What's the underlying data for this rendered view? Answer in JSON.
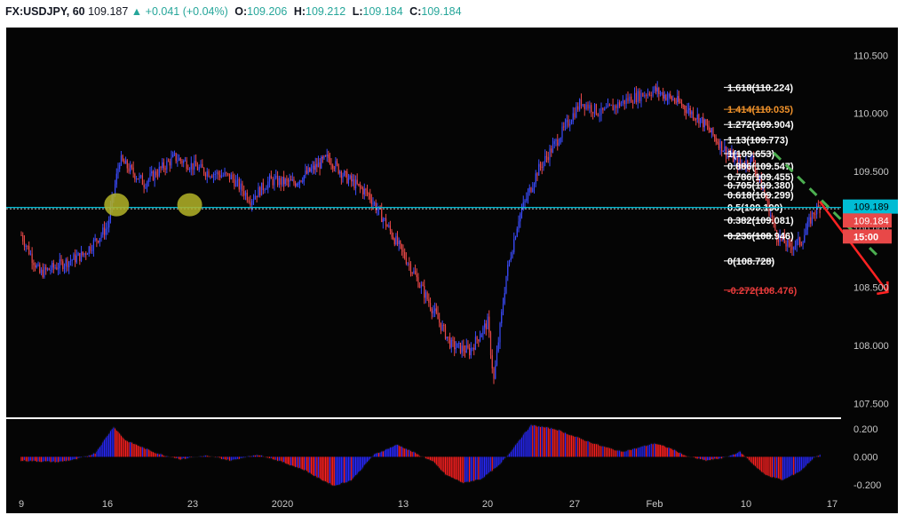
{
  "header": {
    "symbol": "FX:USDJPY, 60",
    "last": "109.187",
    "change_arrow": "▲",
    "change": "+0.041 (+0.04%)",
    "o_label": "O:",
    "o_value": "109.206",
    "h_label": "H:",
    "h_value": "109.212",
    "l_label": "L:",
    "l_value": "109.184",
    "c_label": "C:",
    "c_value": "109.184"
  },
  "colors": {
    "background": "#050505",
    "up_candle": "#3b4cff",
    "down_candle": "#e84848",
    "fib_line": "#ffffff",
    "fib_highlight": "#f0922b",
    "fib_negative": "#e83b3b",
    "price_line": "#00bcd4",
    "trend_arrow": "#ff2222",
    "trendline": "#4caf50",
    "marker": "#b4b428",
    "osc_up": "#2828ff",
    "osc_down": "#ff2020"
  },
  "chart_data": [
    {
      "type": "candlestick",
      "title": "FX:USDJPY, 60",
      "x_ticks": [
        "9",
        "16",
        "23",
        "2020",
        "13",
        "20",
        "27",
        "Feb",
        "10",
        "17"
      ],
      "y_ticks": [
        "110.500",
        "110.000",
        "109.500",
        "109.000",
        "108.500",
        "108.000",
        "107.500"
      ],
      "ylim": [
        107.38,
        110.74
      ],
      "price_series": [
        [
          0,
          108.95
        ],
        [
          3,
          108.62
        ],
        [
          10,
          108.78
        ],
        [
          14,
          109.02
        ],
        [
          16,
          109.6
        ],
        [
          20,
          109.4
        ],
        [
          25,
          109.62
        ],
        [
          30,
          109.5
        ],
        [
          34,
          109.45
        ],
        [
          37,
          109.26
        ],
        [
          40,
          109.42
        ],
        [
          44,
          109.4
        ],
        [
          50,
          109.62
        ],
        [
          53,
          109.45
        ],
        [
          57,
          109.3
        ],
        [
          60,
          109.05
        ],
        [
          64,
          108.7
        ],
        [
          68,
          108.3
        ],
        [
          71,
          108.0
        ],
        [
          74,
          107.95
        ],
        [
          77,
          108.2
        ],
        [
          78,
          107.7
        ],
        [
          80,
          108.6
        ],
        [
          82,
          109.1
        ],
        [
          85,
          109.5
        ],
        [
          88,
          109.75
        ],
        [
          92,
          110.1
        ],
        [
          95,
          110.0
        ],
        [
          99,
          110.12
        ],
        [
          103,
          110.2
        ],
        [
          107,
          110.1
        ],
        [
          111,
          109.95
        ],
        [
          115,
          109.7
        ],
        [
          118,
          109.55
        ],
        [
          120,
          109.6
        ],
        [
          122,
          109.3
        ],
        [
          124,
          108.95
        ],
        [
          126,
          108.85
        ],
        [
          128,
          108.9
        ],
        [
          130,
          109.15
        ],
        [
          131,
          109.19
        ]
      ],
      "fibonacci": [
        {
          "label": "1.618(110.224)",
          "level": 110.224
        },
        {
          "label": "1.414(110.035)",
          "level": 110.035,
          "color": "#f0922b"
        },
        {
          "label": "1.272(109.904)",
          "level": 109.904
        },
        {
          "label": "1.13(109.773)",
          "level": 109.773
        },
        {
          "label": "1(109.653)",
          "level": 109.653
        },
        {
          "label": "0.886(109.547)",
          "level": 109.547
        },
        {
          "label": "0.786(109.455)",
          "level": 109.455
        },
        {
          "label": "0.705(109.380)",
          "level": 109.38
        },
        {
          "label": "0.618(109.299)",
          "level": 109.299
        },
        {
          "label": "0.5(109.190)",
          "level": 109.19
        },
        {
          "label": "0.382(109.081)",
          "level": 109.081
        },
        {
          "label": "0.236(108.946)",
          "level": 108.946
        },
        {
          "label": "0(108.728)",
          "level": 108.728
        },
        {
          "label": "-0.272(108.476)",
          "level": 108.476,
          "color": "#e83b3b"
        }
      ],
      "price_line": 109.189,
      "price_badges": [
        {
          "text": "109.189",
          "bg": "#00bcd4",
          "fg": "#000000"
        },
        {
          "text": "109.184",
          "bg": "#e84848",
          "fg": "#ffffff"
        },
        {
          "text": "15:00",
          "bg": "#e84848",
          "fg": "#ffffff"
        }
      ],
      "support_markers": [
        15.5,
        27.5
      ],
      "trendline": {
        "from": [
          123.5,
          109.66
        ],
        "to": [
          141,
          108.74
        ]
      },
      "arrow": {
        "from": [
          131,
          109.24
        ],
        "to": [
          142,
          108.46
        ]
      }
    },
    {
      "type": "histogram",
      "title": "",
      "y_ticks": [
        "0.200",
        "0.000",
        "-0.200"
      ],
      "ylim": [
        -0.245,
        0.27
      ],
      "series": [
        [
          0,
          -0.03
        ],
        [
          6,
          -0.04
        ],
        [
          9,
          -0.02
        ],
        [
          12,
          0.03
        ],
        [
          15,
          0.22
        ],
        [
          17,
          0.12
        ],
        [
          22,
          0.03
        ],
        [
          26,
          -0.02
        ],
        [
          30,
          0.01
        ],
        [
          34,
          -0.03
        ],
        [
          38,
          0.02
        ],
        [
          42,
          -0.04
        ],
        [
          46,
          -0.1
        ],
        [
          48,
          -0.15
        ],
        [
          51,
          -0.21
        ],
        [
          54,
          -0.17
        ],
        [
          56,
          -0.08
        ],
        [
          58,
          0.02
        ],
        [
          62,
          0.09
        ],
        [
          65,
          0.03
        ],
        [
          68,
          -0.04
        ],
        [
          70,
          -0.13
        ],
        [
          73,
          -0.19
        ],
        [
          76,
          -0.16
        ],
        [
          79,
          -0.06
        ],
        [
          82,
          0.12
        ],
        [
          84,
          0.23
        ],
        [
          88,
          0.2
        ],
        [
          92,
          0.13
        ],
        [
          95,
          0.08
        ],
        [
          98,
          0.04
        ],
        [
          100,
          0.06
        ],
        [
          103,
          0.1
        ],
        [
          106,
          0.06
        ],
        [
          109,
          0.0
        ],
        [
          112,
          -0.03
        ],
        [
          115,
          -0.01
        ],
        [
          118,
          0.04
        ],
        [
          120,
          -0.05
        ],
        [
          122,
          -0.13
        ],
        [
          125,
          -0.17
        ],
        [
          128,
          -0.1
        ],
        [
          130,
          -0.01
        ],
        [
          131,
          0.02
        ]
      ]
    }
  ]
}
